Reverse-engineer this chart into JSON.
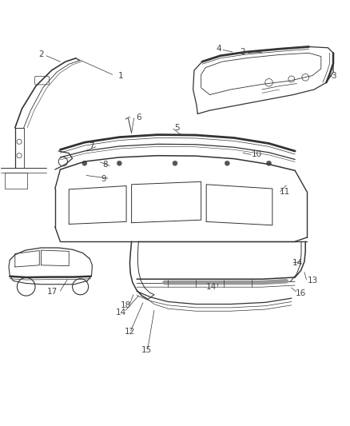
{
  "background_color": "#ffffff",
  "figure_width": 4.38,
  "figure_height": 5.33,
  "dpi": 100,
  "line_color": "#333333",
  "text_color": "#444444",
  "label_fontsize": 7.5
}
